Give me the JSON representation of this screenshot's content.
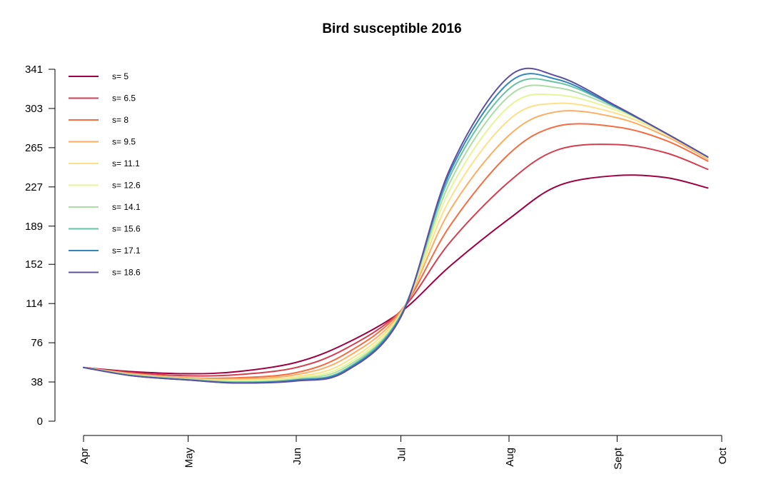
{
  "chart_data": {
    "type": "line",
    "title": "Bird susceptible 2016",
    "xlabel": "",
    "ylabel": "",
    "x_axis": {
      "ticks": [
        "Apr",
        "May",
        "Jun",
        "Jul",
        "Aug",
        "Sept",
        "Oct"
      ],
      "range": [
        "Apr",
        "Oct"
      ]
    },
    "y_axis": {
      "ticks": [
        0,
        38,
        76,
        114,
        152,
        189,
        227,
        265,
        303,
        341
      ],
      "range": [
        0,
        341
      ]
    },
    "x": [
      "Apr 1",
      "Apr 15",
      "May 1",
      "May 15",
      "Jun 1",
      "Jun 15",
      "Jul 1",
      "Jul 15",
      "Aug 1",
      "Aug 15",
      "Sept 1",
      "Sept 15",
      "Sept 27"
    ],
    "series": [
      {
        "name": "s= 5",
        "color": "#9e0142",
        "values": [
          52,
          48,
          46,
          48,
          57,
          75,
          106,
          150,
          196,
          228,
          238,
          236,
          226
        ]
      },
      {
        "name": "s= 6.5",
        "color": "#d53e4f",
        "values": [
          52,
          47,
          44,
          45,
          52,
          70,
          107,
          173,
          232,
          263,
          268,
          260,
          244
        ]
      },
      {
        "name": "s= 8",
        "color": "#f46d43",
        "values": [
          52,
          46,
          42,
          42,
          47,
          65,
          107,
          189,
          259,
          286,
          285,
          272,
          252
        ]
      },
      {
        "name": "s= 9.5",
        "color": "#fdae61",
        "values": [
          52,
          46,
          42,
          41,
          45,
          61,
          106,
          204,
          277,
          300,
          294,
          276,
          254
        ]
      },
      {
        "name": "s= 11.1",
        "color": "#fee08b",
        "values": [
          52,
          45,
          41,
          40,
          43,
          57,
          105,
          215,
          292,
          308,
          298,
          278,
          255
        ]
      },
      {
        "name": "s= 12.6",
        "color": "#e6f598",
        "values": [
          52,
          45,
          41,
          39,
          42,
          54,
          104,
          224,
          305,
          316,
          301,
          279,
          255
        ]
      },
      {
        "name": "s= 14.1",
        "color": "#abdda4",
        "values": [
          52,
          45,
          41,
          38,
          41,
          52,
          103,
          231,
          315,
          323,
          303,
          279,
          256
        ]
      },
      {
        "name": "s= 15.6",
        "color": "#66c2a5",
        "values": [
          52,
          44,
          40,
          38,
          40,
          50,
          103,
          237,
          322,
          328,
          304,
          279,
          256
        ]
      },
      {
        "name": "s= 17.1",
        "color": "#3288bd",
        "values": [
          52,
          44,
          40,
          37,
          40,
          49,
          102,
          241,
          328,
          331,
          304,
          279,
          256
        ]
      },
      {
        "name": "s= 18.6",
        "color": "#5e4fa2",
        "values": [
          52,
          44,
          40,
          37,
          39,
          48,
          101,
          244,
          334,
          334,
          305,
          279,
          256
        ]
      }
    ],
    "legend": {
      "position": "top-left"
    },
    "grid": false
  }
}
